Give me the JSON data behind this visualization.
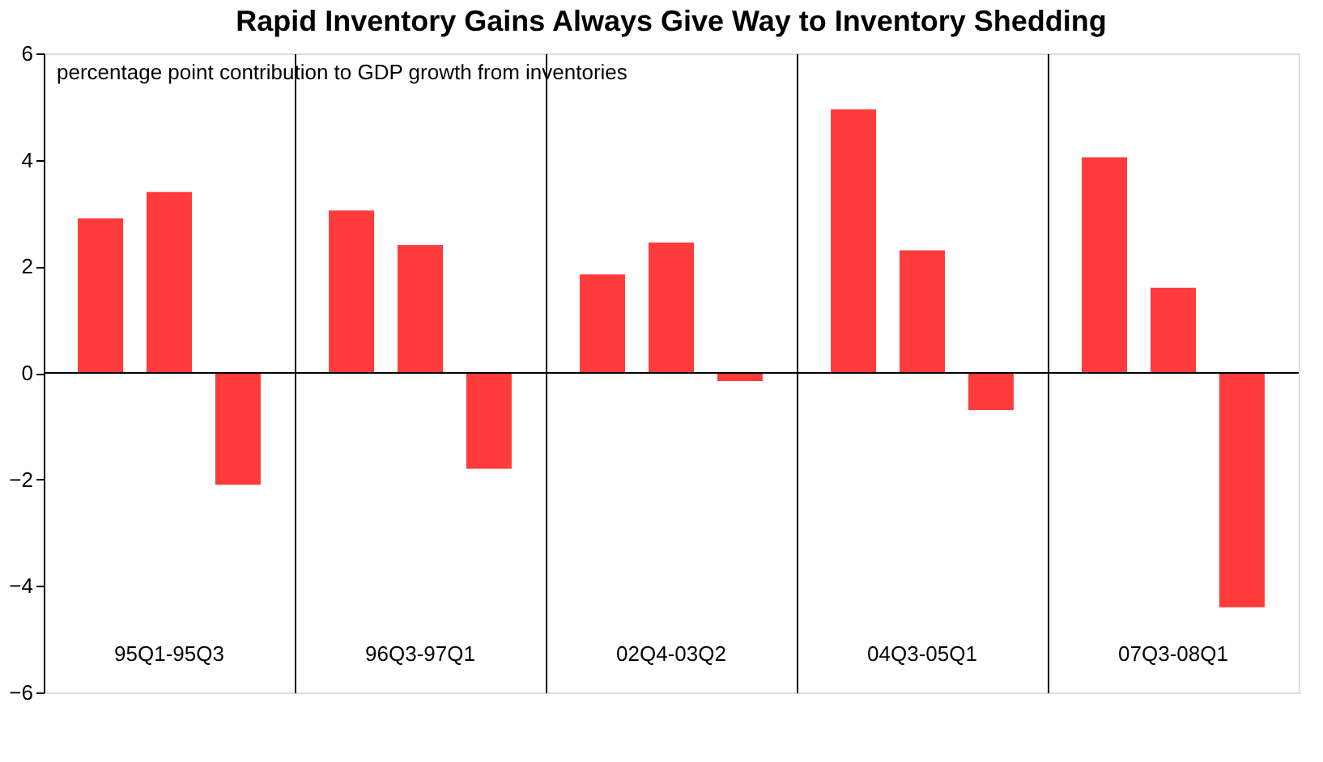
{
  "chart_data": {
    "type": "bar",
    "title": "Rapid Inventory Gains Always Give Way to Inventory Shedding",
    "categories": [
      "95Q1-95Q3",
      "96Q3-97Q1",
      "02Q4-03Q2",
      "04Q3-05Q1",
      "07Q3-08Q1"
    ],
    "series": [
      {
        "color": "#ff3b3b",
        "values": [
          2.9,
          3.05,
          1.85,
          4.95,
          4.05
        ]
      },
      {
        "color": "#ff3b3b",
        "values": [
          3.4,
          2.4,
          2.45,
          2.3,
          1.6
        ]
      },
      {
        "color": "#ff3b3b",
        "values": [
          -2.1,
          -1.8,
          -0.15,
          -0.7,
          -4.4
        ]
      }
    ],
    "ylim": [
      -6,
      6
    ],
    "yticks": [
      -6,
      -4,
      -2,
      0,
      2,
      4,
      6
    ],
    "grid": "x",
    "legend": false,
    "ref_lines": [
      {
        "axis": "y",
        "value": 0,
        "color": "#000000"
      }
    ],
    "annotations": [
      "percentage point contribution to GDP growth from inventories"
    ]
  }
}
